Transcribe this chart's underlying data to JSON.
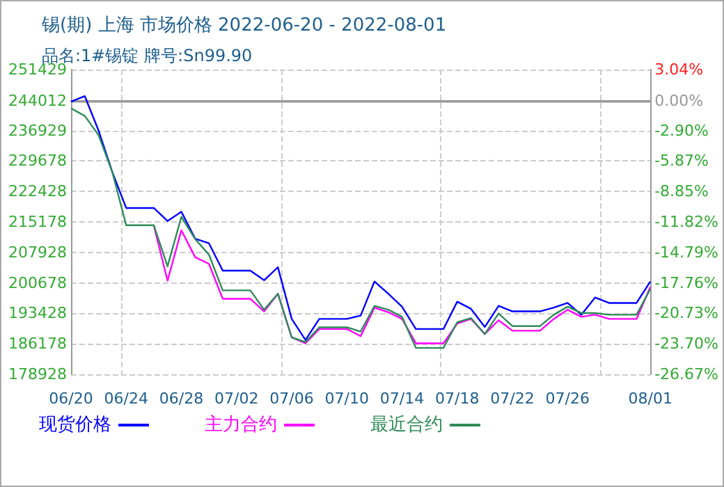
{
  "chart_data": {
    "type": "line",
    "title": "锡(期) 上海 市场价格 2022-06-20 - 2022-08-01",
    "subtitle": "品名:1#锡锭 牌号:Sn99.90",
    "x": [
      "2022-06-20",
      "2022-06-21",
      "2022-06-22",
      "2022-06-23",
      "2022-06-24",
      "2022-06-25",
      "2022-06-26",
      "2022-06-27",
      "2022-06-28",
      "2022-06-29",
      "2022-06-30",
      "2022-07-01",
      "2022-07-02",
      "2022-07-03",
      "2022-07-04",
      "2022-07-05",
      "2022-07-06",
      "2022-07-07",
      "2022-07-08",
      "2022-07-09",
      "2022-07-10",
      "2022-07-11",
      "2022-07-12",
      "2022-07-13",
      "2022-07-14",
      "2022-07-15",
      "2022-07-16",
      "2022-07-17",
      "2022-07-18",
      "2022-07-19",
      "2022-07-20",
      "2022-07-21",
      "2022-07-22",
      "2022-07-23",
      "2022-07-24",
      "2022-07-25",
      "2022-07-26",
      "2022-07-27",
      "2022-07-28",
      "2022-07-29",
      "2022-07-30",
      "2022-07-31",
      "2022-08-01"
    ],
    "series": [
      {
        "name": "现货价格",
        "color": "#0000ff",
        "values": [
          243800,
          245100,
          236900,
          227000,
          218500,
          218500,
          218500,
          215400,
          217600,
          211200,
          210100,
          203600,
          203600,
          203600,
          201300,
          204400,
          192100,
          187100,
          192100,
          192100,
          192100,
          192900,
          201000,
          198100,
          195000,
          189700,
          189700,
          189700,
          196200,
          194500,
          190200,
          195200,
          193900,
          193900,
          193900,
          194800,
          195900,
          193100,
          197200,
          195900,
          195900,
          195900,
          201000
        ]
      },
      {
        "name": "主力合约",
        "color": "#ff00ff",
        "values": [
          null,
          null,
          null,
          null,
          null,
          null,
          214400,
          201200,
          213200,
          206800,
          205200,
          196900,
          196900,
          196900,
          193900,
          198100,
          187700,
          186300,
          189700,
          189700,
          189700,
          188000,
          194800,
          193700,
          192100,
          186300,
          186300,
          186300,
          191000,
          192100,
          188500,
          191800,
          189300,
          189300,
          189300,
          192100,
          194300,
          192600,
          193100,
          192100,
          192100,
          192100,
          199700
        ]
      },
      {
        "name": "最近合约",
        "color": "#2e8b57",
        "values": [
          242200,
          240400,
          235800,
          227000,
          214400,
          214400,
          214400,
          204600,
          216400,
          211100,
          207400,
          198900,
          198900,
          198900,
          194300,
          198100,
          187700,
          186600,
          190100,
          190100,
          190100,
          189100,
          195200,
          194300,
          192600,
          185200,
          185200,
          185200,
          191300,
          192300,
          188500,
          193400,
          190400,
          190400,
          190400,
          193100,
          195000,
          193500,
          193500,
          193100,
          193100,
          193100,
          199200
        ]
      }
    ],
    "xlim": [
      "2022-06-20",
      "2022-08-01"
    ],
    "xticks": [
      {
        "value": "2022-06-20",
        "label": "06/20"
      },
      {
        "value": "2022-06-24",
        "label": "06/24"
      },
      {
        "value": "2022-06-28",
        "label": "06/28"
      },
      {
        "value": "2022-07-02",
        "label": "07/02"
      },
      {
        "value": "2022-07-06",
        "label": "07/06"
      },
      {
        "value": "2022-07-10",
        "label": "07/10"
      },
      {
        "value": "2022-07-14",
        "label": "07/14"
      },
      {
        "value": "2022-07-18",
        "label": "07/18"
      },
      {
        "value": "2022-07-22",
        "label": "07/22"
      },
      {
        "value": "2022-07-26",
        "label": "07/26"
      },
      {
        "value": "2022-08-01",
        "label": "08/01"
      }
    ],
    "ylim": [
      178928,
      251429
    ],
    "yticks": [
      178928,
      186178,
      193428,
      200678,
      207928,
      215178,
      222428,
      229678,
      236929,
      244012,
      251429
    ],
    "y2lim": [
      -26.67,
      3.04
    ],
    "y2ticks": [
      {
        "value": -26.67,
        "label": "-26.67%"
      },
      {
        "value": -23.7,
        "label": "-23.70%"
      },
      {
        "value": -20.73,
        "label": "-20.73%"
      },
      {
        "value": -17.76,
        "label": "-17.76%"
      },
      {
        "value": -14.79,
        "label": "-14.79%"
      },
      {
        "value": -11.82,
        "label": "-11.82%"
      },
      {
        "value": -8.85,
        "label": "-8.85%"
      },
      {
        "value": -5.87,
        "label": "-5.87%"
      },
      {
        "value": -2.9,
        "label": "-2.90%"
      },
      {
        "value": 0,
        "label": "0.00%"
      },
      {
        "value": 3.04,
        "label": "3.04%"
      }
    ],
    "ref_lines": [
      {
        "axis": "y",
        "value": 244012,
        "color": "#999999"
      }
    ],
    "grid": true,
    "legend": "bottom",
    "marker": "none",
    "line_style": "solid"
  }
}
